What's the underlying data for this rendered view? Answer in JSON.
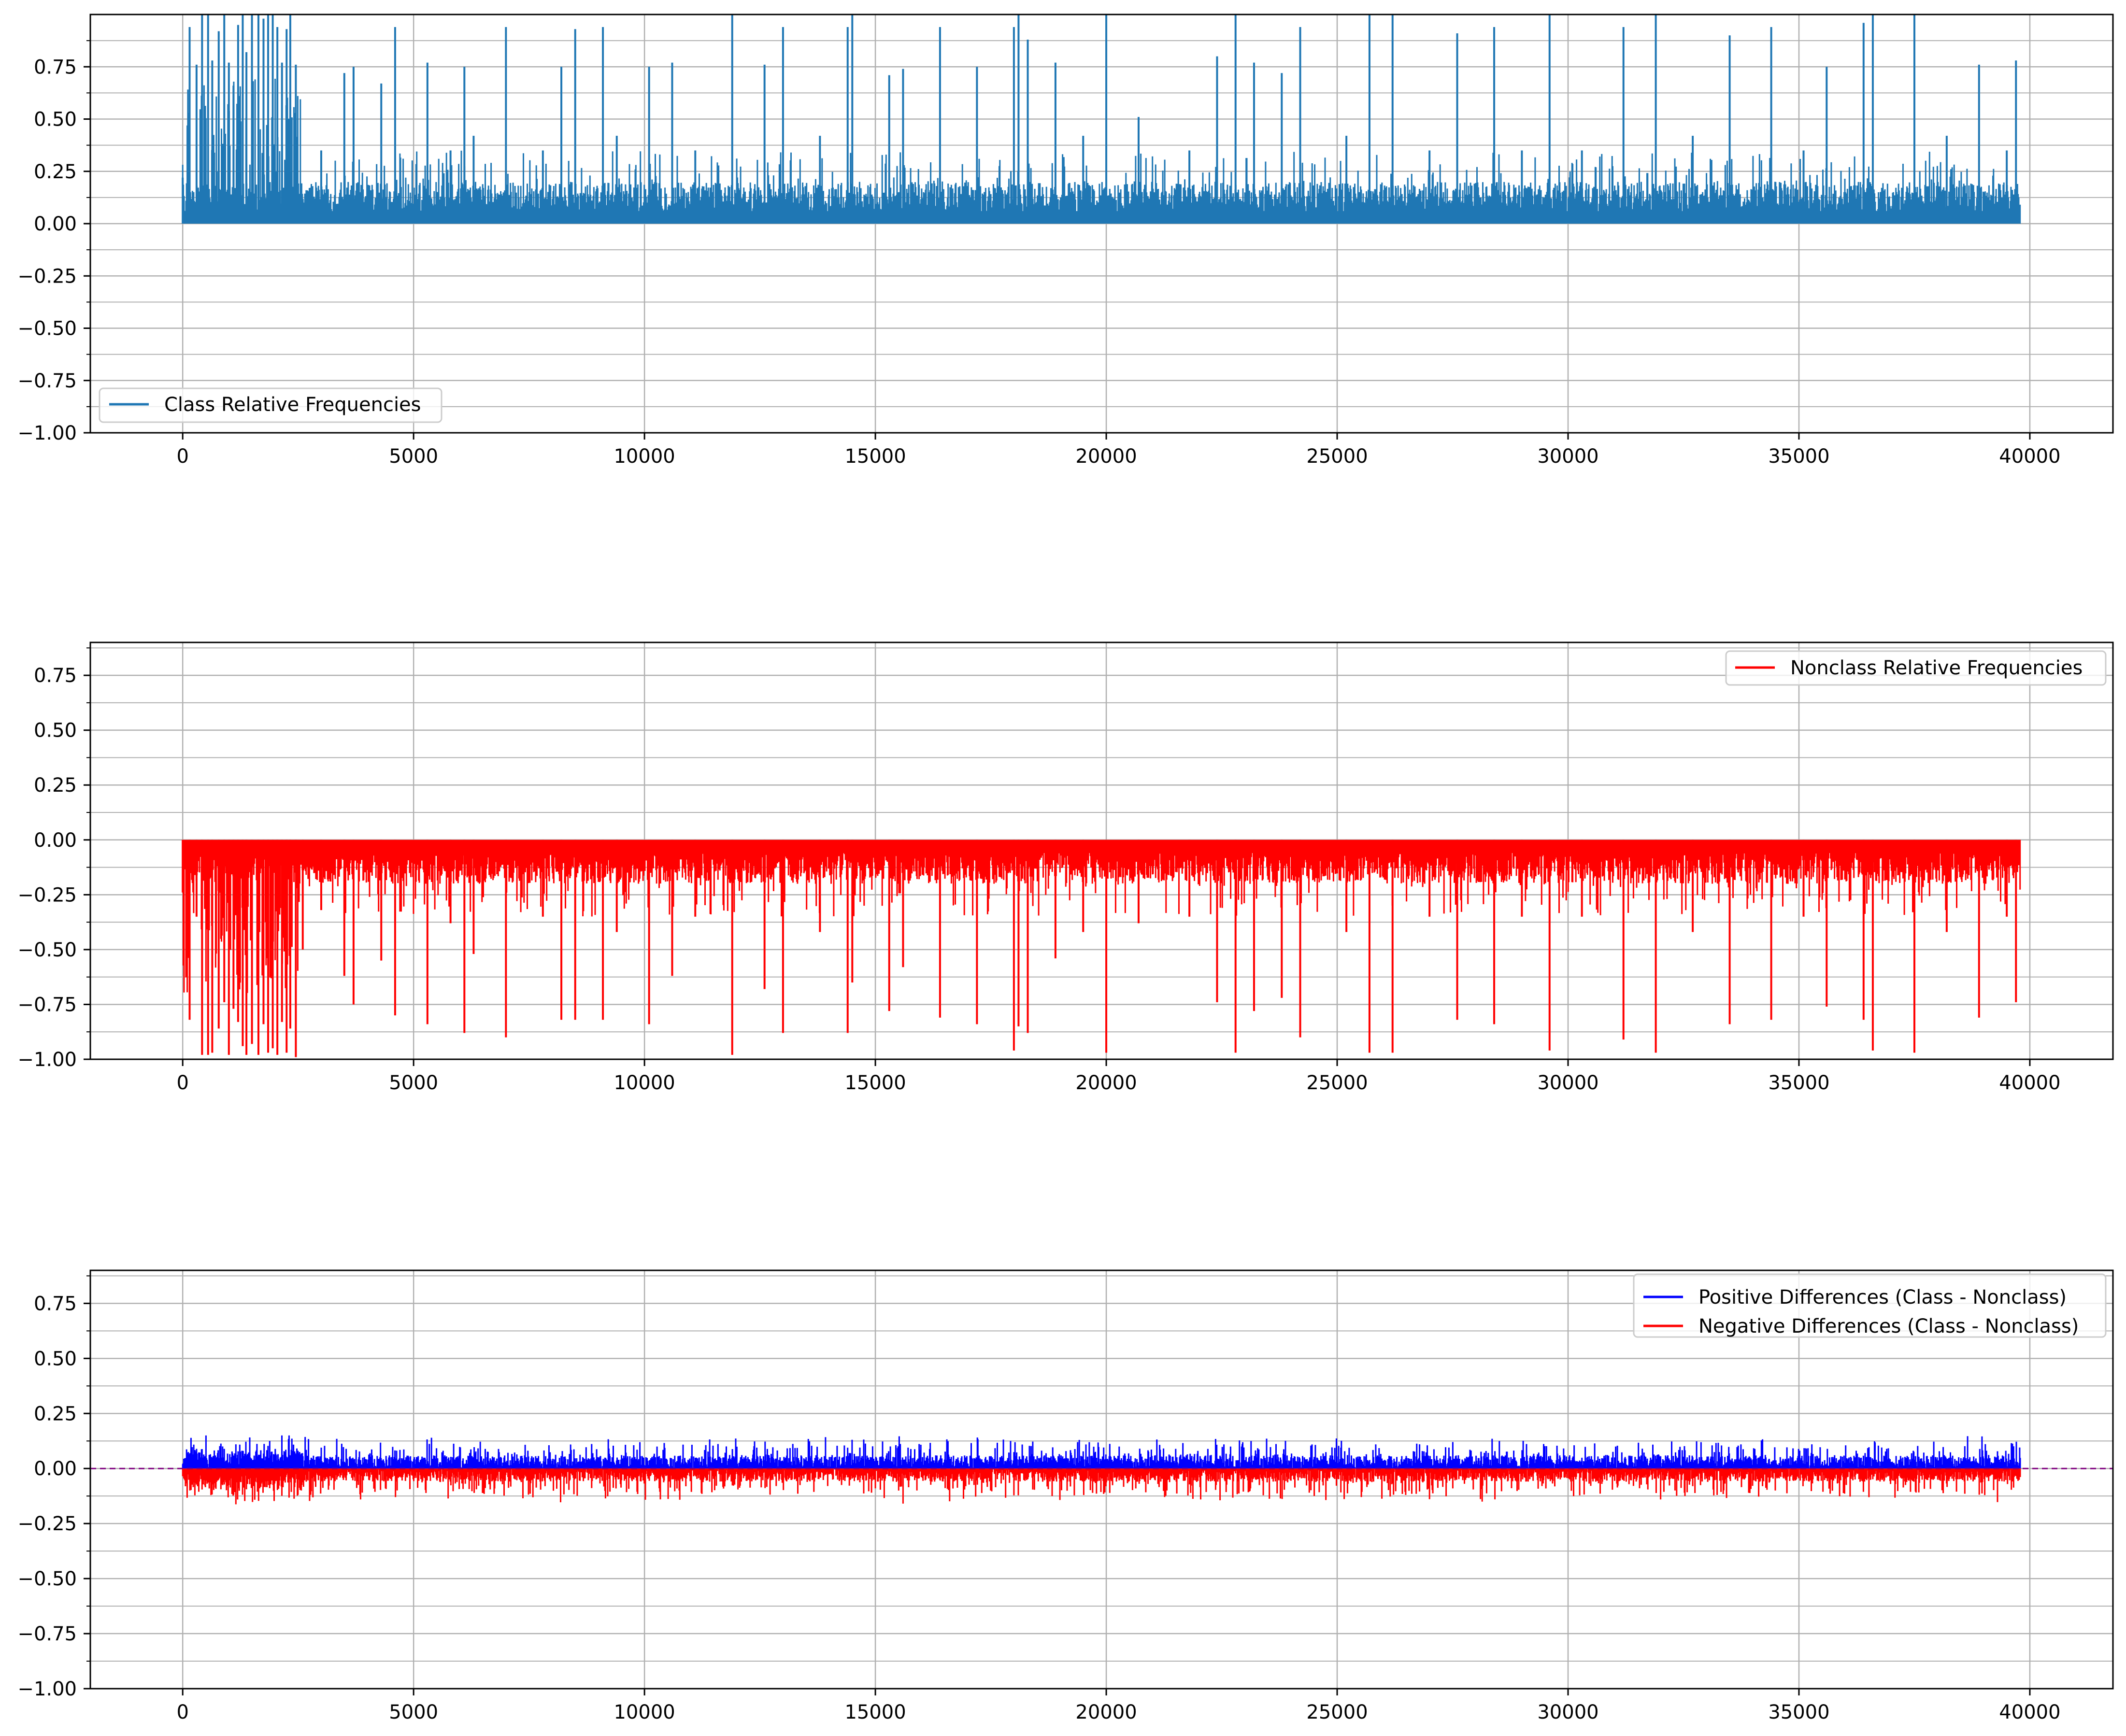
{
  "chart_data": [
    {
      "type": "line",
      "title": "",
      "xlabel": "",
      "ylabel": "",
      "xlim": [
        -2000,
        41800
      ],
      "ylim": [
        -1.0,
        1.0
      ],
      "x_ticks": [
        0,
        5000,
        10000,
        15000,
        20000,
        25000,
        30000,
        35000,
        40000
      ],
      "x_tick_labels": [
        "0",
        "5000",
        "10000",
        "15000",
        "20000",
        "25000",
        "30000",
        "35000",
        "40000"
      ],
      "y_ticks": [
        -1.0,
        -0.75,
        -0.5,
        -0.25,
        0.0,
        0.25,
        0.5,
        0.75
      ],
      "y_tick_labels": [
        "−1.00",
        "−0.75",
        "−0.50",
        "−0.25",
        "0.00",
        "0.25",
        "0.50",
        "0.75"
      ],
      "grid": true,
      "legend_position": "lower-left",
      "series": [
        {
          "name": "Class Relative Frequencies",
          "color": "#1f77b4",
          "x_range": [
            0,
            39800
          ],
          "points": [
            [
              0,
              0.22
            ],
            [
              150,
              0.94
            ],
            [
              300,
              0.76
            ],
            [
              420,
              1.0
            ],
            [
              550,
              1.0
            ],
            [
              640,
              0.78
            ],
            [
              780,
              0.92
            ],
            [
              900,
              1.0
            ],
            [
              1000,
              0.77
            ],
            [
              1100,
              0.66
            ],
            [
              1200,
              0.95
            ],
            [
              1300,
              1.0
            ],
            [
              1380,
              0.82
            ],
            [
              1500,
              1.0
            ],
            [
              1640,
              1.0
            ],
            [
              1750,
              0.98
            ],
            [
              1850,
              1.0
            ],
            [
              1950,
              1.0
            ],
            [
              2050,
              0.94
            ],
            [
              2150,
              0.77
            ],
            [
              2250,
              0.93
            ],
            [
              2330,
              1.0
            ],
            [
              2450,
              0.76
            ],
            [
              3000,
              0.35
            ],
            [
              3500,
              0.72
            ],
            [
              3700,
              0.75
            ],
            [
              4300,
              0.67
            ],
            [
              4600,
              0.94
            ],
            [
              5300,
              0.77
            ],
            [
              5800,
              0.35
            ],
            [
              6100,
              0.75
            ],
            [
              6300,
              0.42
            ],
            [
              7000,
              0.94
            ],
            [
              7800,
              0.35
            ],
            [
              8200,
              0.75
            ],
            [
              8500,
              0.93
            ],
            [
              9100,
              0.94
            ],
            [
              9400,
              0.42
            ],
            [
              10100,
              0.75
            ],
            [
              10600,
              0.77
            ],
            [
              11100,
              0.35
            ],
            [
              11900,
              1.0
            ],
            [
              12600,
              0.76
            ],
            [
              13000,
              0.94
            ],
            [
              13800,
              0.42
            ],
            [
              14400,
              0.94
            ],
            [
              14500,
              1.0
            ],
            [
              15300,
              0.71
            ],
            [
              15600,
              0.74
            ],
            [
              16400,
              0.94
            ],
            [
              17200,
              0.75
            ],
            [
              18000,
              0.94
            ],
            [
              18100,
              1.0
            ],
            [
              18300,
              0.88
            ],
            [
              18900,
              0.77
            ],
            [
              19500,
              0.42
            ],
            [
              20000,
              1.0
            ],
            [
              20700,
              0.51
            ],
            [
              21800,
              0.35
            ],
            [
              22400,
              0.8
            ],
            [
              22800,
              1.0
            ],
            [
              23200,
              0.77
            ],
            [
              23800,
              0.72
            ],
            [
              24200,
              0.94
            ],
            [
              25200,
              0.42
            ],
            [
              25700,
              1.0
            ],
            [
              26200,
              1.0
            ],
            [
              27000,
              0.35
            ],
            [
              27600,
              0.91
            ],
            [
              28400,
              0.94
            ],
            [
              29000,
              0.35
            ],
            [
              29600,
              1.0
            ],
            [
              30300,
              0.35
            ],
            [
              31200,
              0.94
            ],
            [
              31900,
              1.0
            ],
            [
              32700,
              0.42
            ],
            [
              33500,
              0.9
            ],
            [
              34400,
              0.94
            ],
            [
              35100,
              0.35
            ],
            [
              35600,
              0.75
            ],
            [
              36400,
              0.96
            ],
            [
              36600,
              1.0
            ],
            [
              37500,
              1.0
            ],
            [
              38200,
              0.42
            ],
            [
              38900,
              0.76
            ],
            [
              39500,
              0.35
            ],
            [
              39700,
              0.78
            ]
          ]
        }
      ]
    },
    {
      "type": "line",
      "title": "",
      "xlabel": "",
      "ylabel": "",
      "xlim": [
        -2000,
        41800
      ],
      "ylim": [
        -1.0,
        0.9
      ],
      "x_ticks": [
        0,
        5000,
        10000,
        15000,
        20000,
        25000,
        30000,
        35000,
        40000
      ],
      "x_tick_labels": [
        "0",
        "5000",
        "10000",
        "15000",
        "20000",
        "25000",
        "30000",
        "35000",
        "40000"
      ],
      "y_ticks": [
        -1.0,
        -0.75,
        -0.5,
        -0.25,
        0.0,
        0.25,
        0.5,
        0.75
      ],
      "y_tick_labels": [
        "−1.00",
        "−0.75",
        "−0.50",
        "−0.25",
        "0.00",
        "0.25",
        "0.50",
        "0.75"
      ],
      "grid": true,
      "legend_position": "upper-right",
      "series": [
        {
          "name": "Nonclass Relative Frequencies",
          "color": "#ff0000",
          "x_range": [
            0,
            39800
          ],
          "points": [
            [
              0,
              -0.24
            ],
            [
              150,
              -0.82
            ],
            [
              300,
              -0.35
            ],
            [
              420,
              -0.98
            ],
            [
              550,
              -0.98
            ],
            [
              640,
              -0.97
            ],
            [
              780,
              -0.86
            ],
            [
              900,
              -0.74
            ],
            [
              1000,
              -0.98
            ],
            [
              1100,
              -0.77
            ],
            [
              1200,
              -0.83
            ],
            [
              1300,
              -0.94
            ],
            [
              1380,
              -0.98
            ],
            [
              1500,
              -0.93
            ],
            [
              1640,
              -0.98
            ],
            [
              1750,
              -0.84
            ],
            [
              1850,
              -0.97
            ],
            [
              1950,
              -0.95
            ],
            [
              2050,
              -0.98
            ],
            [
              2150,
              -0.83
            ],
            [
              2250,
              -0.97
            ],
            [
              2330,
              -0.86
            ],
            [
              2450,
              -0.99
            ],
            [
              2600,
              -0.5
            ],
            [
              3000,
              -0.32
            ],
            [
              3500,
              -0.62
            ],
            [
              3700,
              -0.75
            ],
            [
              4300,
              -0.55
            ],
            [
              4600,
              -0.8
            ],
            [
              5300,
              -0.84
            ],
            [
              5800,
              -0.38
            ],
            [
              6100,
              -0.88
            ],
            [
              6300,
              -0.52
            ],
            [
              7000,
              -0.9
            ],
            [
              7800,
              -0.35
            ],
            [
              8200,
              -0.82
            ],
            [
              8500,
              -0.82
            ],
            [
              9100,
              -0.82
            ],
            [
              9400,
              -0.42
            ],
            [
              10100,
              -0.84
            ],
            [
              10600,
              -0.62
            ],
            [
              11100,
              -0.35
            ],
            [
              11900,
              -0.98
            ],
            [
              12600,
              -0.68
            ],
            [
              13000,
              -0.88
            ],
            [
              13800,
              -0.42
            ],
            [
              14400,
              -0.88
            ],
            [
              14500,
              -0.65
            ],
            [
              15300,
              -0.78
            ],
            [
              15600,
              -0.58
            ],
            [
              16400,
              -0.81
            ],
            [
              17200,
              -0.84
            ],
            [
              18000,
              -0.96
            ],
            [
              18100,
              -0.85
            ],
            [
              18300,
              -0.88
            ],
            [
              18900,
              -0.54
            ],
            [
              19500,
              -0.42
            ],
            [
              20000,
              -0.97
            ],
            [
              20700,
              -0.38
            ],
            [
              21800,
              -0.35
            ],
            [
              22400,
              -0.74
            ],
            [
              22800,
              -0.97
            ],
            [
              23200,
              -0.78
            ],
            [
              23800,
              -0.72
            ],
            [
              24200,
              -0.9
            ],
            [
              25200,
              -0.42
            ],
            [
              25700,
              -0.97
            ],
            [
              26200,
              -0.97
            ],
            [
              27000,
              -0.35
            ],
            [
              27600,
              -0.82
            ],
            [
              28400,
              -0.84
            ],
            [
              29000,
              -0.35
            ],
            [
              29600,
              -0.96
            ],
            [
              30300,
              -0.35
            ],
            [
              31200,
              -0.91
            ],
            [
              31900,
              -0.97
            ],
            [
              32700,
              -0.42
            ],
            [
              33500,
              -0.84
            ],
            [
              34400,
              -0.82
            ],
            [
              35100,
              -0.35
            ],
            [
              35600,
              -0.76
            ],
            [
              36400,
              -0.82
            ],
            [
              36600,
              -0.96
            ],
            [
              37500,
              -0.97
            ],
            [
              38200,
              -0.42
            ],
            [
              38900,
              -0.81
            ],
            [
              39500,
              -0.35
            ],
            [
              39700,
              -0.74
            ]
          ]
        }
      ]
    },
    {
      "type": "line",
      "title": "",
      "xlabel": "",
      "ylabel": "",
      "xlim": [
        -2000,
        41800
      ],
      "ylim": [
        -1.0,
        0.9
      ],
      "x_ticks": [
        0,
        5000,
        10000,
        15000,
        20000,
        25000,
        30000,
        35000,
        40000
      ],
      "x_tick_labels": [
        "0",
        "5000",
        "10000",
        "15000",
        "20000",
        "25000",
        "30000",
        "35000",
        "40000"
      ],
      "y_ticks": [
        -1.0,
        -0.75,
        -0.5,
        -0.25,
        0.0,
        0.25,
        0.5,
        0.75
      ],
      "y_tick_labels": [
        "−1.00",
        "−0.75",
        "−0.50",
        "−0.25",
        "0.00",
        "0.25",
        "0.50",
        "0.75"
      ],
      "grid": true,
      "legend_position": "upper-right",
      "reference_line": {
        "y": 0.0,
        "style": "dashed",
        "color": "#800080"
      },
      "series": [
        {
          "name": "Positive Differences (Class - Nonclass)",
          "color": "#0000ff",
          "x_range": [
            0,
            39800
          ],
          "typical_max": 0.15
        },
        {
          "name": "Negative Differences (Class - Nonclass)",
          "color": "#ff0000",
          "x_range": [
            0,
            39800
          ],
          "typical_min": -0.17
        }
      ]
    }
  ]
}
